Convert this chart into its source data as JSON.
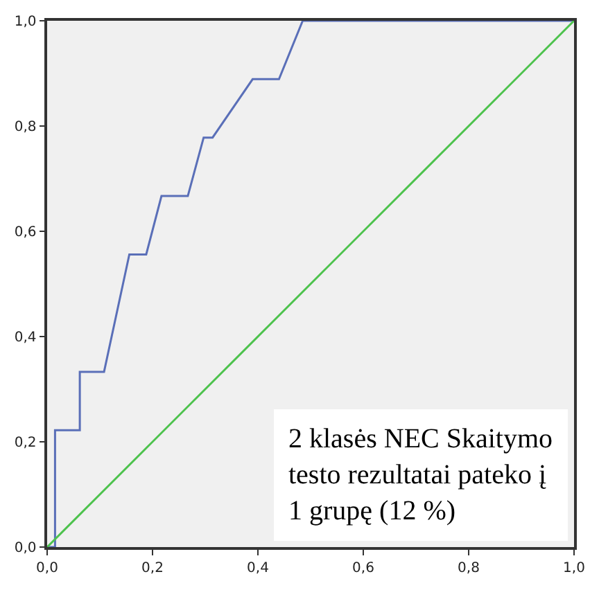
{
  "chart_data": {
    "type": "line",
    "series": [
      {
        "color": "#5a6fb8",
        "x": [
          0,
          0.015,
          0.015,
          0.062,
          0.062,
          0.108,
          0.156,
          0.188,
          0.217,
          0.267,
          0.297,
          0.314,
          0.39,
          0.44,
          0.485,
          1
        ],
        "values": [
          0,
          0,
          0.222,
          0.222,
          0.333,
          0.333,
          0.556,
          0.556,
          0.667,
          0.667,
          0.778,
          0.778,
          0.889,
          0.889,
          1,
          1
        ]
      },
      {
        "color": "#4cc24c",
        "x": [
          0,
          1
        ],
        "values": [
          0,
          1
        ]
      }
    ],
    "xlim": [
      0,
      1
    ],
    "ylim": [
      0,
      1
    ],
    "xticks": [
      {
        "value": 0,
        "label": "0,0"
      },
      {
        "value": 0.2,
        "label": "0,2"
      },
      {
        "value": 0.4,
        "label": "0,4"
      },
      {
        "value": 0.6,
        "label": "0,6"
      },
      {
        "value": 0.8,
        "label": "0,8"
      },
      {
        "value": 1,
        "label": "1,0"
      }
    ],
    "yticks": [
      {
        "value": 0,
        "label": "0,0"
      },
      {
        "value": 0.2,
        "label": "0,2"
      },
      {
        "value": 0.4,
        "label": "0,4"
      },
      {
        "value": 0.6,
        "label": "0,6"
      },
      {
        "value": 0.8,
        "label": "0,8"
      },
      {
        "value": 1,
        "label": "1,0"
      }
    ],
    "grid": false,
    "marker": "none",
    "line_style": "solid",
    "annotations": [
      "2 klasės NEC Skaitymo\ntesto rezultatai pateko į\n1 grupę (12 %)"
    ]
  }
}
